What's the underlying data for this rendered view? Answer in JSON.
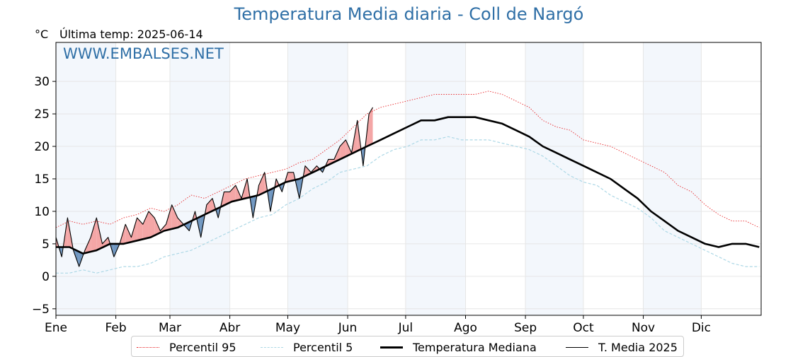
{
  "header": {
    "title": "Temperatura Media diaria - Coll de Nargó",
    "unit": "°C",
    "last_temp": "Última temp: 2025-06-14",
    "watermark": "WWW.EMBALSES.NET"
  },
  "colors": {
    "title": "#2f6fa6",
    "p95": "#e8282b",
    "p5": "#add8e6",
    "median": "#000000",
    "current": "#000000",
    "above_fill": "#f4a6a6",
    "below_fill": "#6f96c0",
    "month_shade": "#f3f7fc"
  },
  "legend": [
    {
      "key": "p95",
      "label": "Percentil 95"
    },
    {
      "key": "p5",
      "label": "Percentil 5"
    },
    {
      "key": "median",
      "label": "Temperatura Mediana"
    },
    {
      "key": "current",
      "label": "T. Media 2025"
    }
  ],
  "chart_data": {
    "type": "line",
    "title": "Temperatura Media diaria - Coll de Nargó",
    "ylabel": "°C",
    "xlabel": "",
    "ylim": [
      -6,
      36
    ],
    "y_ticks": [
      -5,
      0,
      5,
      10,
      15,
      20,
      25,
      30
    ],
    "x_ticks": [
      "Ene",
      "Feb",
      "Mar",
      "Abr",
      "May",
      "Jun",
      "Jul",
      "Ago",
      "Sep",
      "Oct",
      "Nov",
      "Dic"
    ],
    "x_tick_days": [
      1,
      32,
      60,
      91,
      121,
      152,
      182,
      213,
      244,
      274,
      305,
      335
    ],
    "xlim_days": [
      1,
      366
    ],
    "shaded_months": [
      "Ene",
      "Mar",
      "May",
      "Jul",
      "Sep",
      "Nov"
    ],
    "grid": true,
    "legend_position": "bottom",
    "series": [
      {
        "name": "Percentil 95",
        "key": "p95",
        "style": "dotted",
        "days": [
          1,
          8,
          15,
          22,
          29,
          36,
          43,
          50,
          57,
          64,
          71,
          78,
          85,
          92,
          99,
          106,
          113,
          120,
          127,
          134,
          141,
          148,
          155,
          162,
          169,
          176,
          183,
          190,
          197,
          204,
          211,
          218,
          225,
          232,
          239,
          246,
          253,
          260,
          267,
          274,
          281,
          288,
          295,
          302,
          309,
          316,
          323,
          330,
          337,
          344,
          351,
          358,
          365
        ],
        "values": [
          7.5,
          8.5,
          8,
          8.5,
          8,
          9,
          9.5,
          10.5,
          10,
          11,
          12.5,
          12,
          13,
          14,
          15,
          15.5,
          16,
          16.5,
          17.5,
          18,
          19.5,
          21,
          23,
          25,
          26,
          26.5,
          27,
          27.5,
          28,
          28,
          28,
          28,
          28.5,
          28,
          27,
          26,
          24,
          23,
          22.5,
          21,
          20.5,
          20,
          19,
          18,
          17,
          16,
          14,
          13,
          11,
          9.5,
          8.5,
          8.5,
          7.5
        ]
      },
      {
        "name": "Percentil 5",
        "key": "p5",
        "style": "dashed",
        "days": [
          1,
          8,
          15,
          22,
          29,
          36,
          43,
          50,
          57,
          64,
          71,
          78,
          85,
          92,
          99,
          106,
          113,
          120,
          127,
          134,
          141,
          148,
          155,
          162,
          169,
          176,
          183,
          190,
          197,
          204,
          211,
          218,
          225,
          232,
          239,
          246,
          253,
          260,
          267,
          274,
          281,
          288,
          295,
          302,
          309,
          316,
          323,
          330,
          337,
          344,
          351,
          358,
          365
        ],
        "values": [
          0.5,
          0.5,
          1,
          0.5,
          1,
          1.5,
          1.5,
          2,
          3,
          3.5,
          4,
          5,
          6,
          7,
          8,
          9,
          9.5,
          11,
          12,
          13.5,
          14.5,
          16,
          16.5,
          17,
          18.5,
          19.5,
          20,
          21,
          21,
          21.5,
          21,
          21,
          21,
          20.5,
          20,
          19.5,
          18.5,
          17,
          15.5,
          14.5,
          14,
          12.5,
          11.5,
          10.5,
          9,
          7,
          6,
          5,
          4,
          3,
          2,
          1.5,
          1.5
        ]
      },
      {
        "name": "Temperatura Mediana",
        "key": "median",
        "style": "solid-thick",
        "days": [
          1,
          8,
          15,
          22,
          29,
          36,
          43,
          50,
          57,
          64,
          71,
          78,
          85,
          92,
          99,
          106,
          113,
          120,
          127,
          134,
          141,
          148,
          155,
          162,
          169,
          176,
          183,
          190,
          197,
          204,
          211,
          218,
          225,
          232,
          239,
          246,
          253,
          260,
          267,
          274,
          281,
          288,
          295,
          302,
          309,
          316,
          323,
          330,
          337,
          344,
          351,
          358,
          365
        ],
        "values": [
          4.5,
          4.5,
          3.5,
          4,
          5,
          5,
          5.5,
          6,
          7,
          7.5,
          8.5,
          9.5,
          10.5,
          11.5,
          12,
          12.5,
          13.5,
          14.5,
          15,
          16,
          17,
          18,
          19,
          20,
          21,
          22,
          23,
          24,
          24,
          24.5,
          24.5,
          24.5,
          24,
          23.5,
          22.5,
          21.5,
          20,
          19,
          18,
          17,
          16,
          15,
          13.5,
          12,
          10,
          8.5,
          7,
          6,
          5,
          4.5,
          5,
          5,
          4.5
        ]
      },
      {
        "name": "T. Media 2025",
        "key": "current",
        "style": "solid-thin",
        "days": [
          1,
          4,
          7,
          10,
          13,
          16,
          19,
          22,
          25,
          28,
          31,
          34,
          37,
          40,
          43,
          46,
          49,
          52,
          55,
          58,
          61,
          64,
          67,
          70,
          73,
          76,
          79,
          82,
          85,
          88,
          91,
          94,
          97,
          100,
          103,
          106,
          109,
          112,
          115,
          118,
          121,
          124,
          127,
          130,
          133,
          136,
          139,
          142,
          145,
          148,
          151,
          154,
          157,
          160,
          163,
          165
        ],
        "values": [
          6,
          3,
          9,
          4,
          1.5,
          4,
          6,
          9,
          5,
          6,
          3,
          5,
          8,
          6,
          9,
          8,
          10,
          9,
          7,
          8,
          11,
          9,
          8,
          7,
          10,
          6,
          11,
          12,
          9,
          13,
          13,
          14,
          12,
          15,
          9,
          14,
          16,
          10,
          15,
          13,
          16,
          16,
          12,
          17,
          16,
          17,
          16,
          18,
          18,
          20,
          21,
          19,
          24,
          17,
          25,
          26
        ]
      }
    ]
  }
}
